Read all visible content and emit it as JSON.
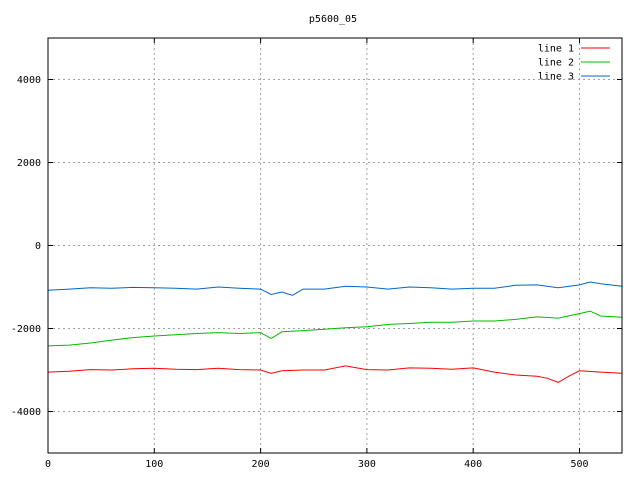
{
  "chart_data": {
    "type": "line",
    "title": "p5600_05",
    "xlim": [
      0,
      540
    ],
    "ylim": [
      -5000,
      5000
    ],
    "x_ticks": [
      0,
      100,
      200,
      300,
      400,
      500
    ],
    "y_ticks": [
      -4000,
      -2000,
      0,
      2000,
      4000
    ],
    "grid": true,
    "legend_position": "top-right",
    "series": [
      {
        "name": "line 1",
        "color": "#ff0000",
        "x": [
          0,
          20,
          40,
          60,
          80,
          100,
          120,
          140,
          160,
          180,
          200,
          210,
          220,
          240,
          260,
          280,
          300,
          320,
          340,
          360,
          380,
          400,
          420,
          440,
          460,
          470,
          480,
          490,
          500,
          520,
          540
        ],
        "y": [
          -3050,
          -3030,
          -2990,
          -3000,
          -2970,
          -2960,
          -2980,
          -2990,
          -2960,
          -2990,
          -3000,
          -3080,
          -3020,
          -3000,
          -3000,
          -2900,
          -2990,
          -3000,
          -2950,
          -2960,
          -2980,
          -2950,
          -3050,
          -3120,
          -3150,
          -3200,
          -3300,
          -3150,
          -3020,
          -3050,
          -3080
        ]
      },
      {
        "name": "line 2",
        "color": "#00bb00",
        "x": [
          0,
          20,
          40,
          60,
          80,
          100,
          120,
          140,
          160,
          180,
          200,
          210,
          220,
          240,
          260,
          280,
          300,
          320,
          340,
          360,
          380,
          400,
          420,
          440,
          460,
          480,
          500,
          510,
          520,
          540
        ],
        "y": [
          -2420,
          -2400,
          -2350,
          -2280,
          -2220,
          -2180,
          -2150,
          -2120,
          -2100,
          -2120,
          -2100,
          -2240,
          -2080,
          -2050,
          -2020,
          -1980,
          -1960,
          -1900,
          -1880,
          -1850,
          -1850,
          -1820,
          -1820,
          -1780,
          -1720,
          -1750,
          -1640,
          -1580,
          -1700,
          -1730
        ]
      },
      {
        "name": "line 3",
        "color": "#0066cc",
        "x": [
          0,
          20,
          40,
          60,
          80,
          100,
          120,
          140,
          160,
          180,
          200,
          210,
          220,
          230,
          240,
          260,
          280,
          300,
          320,
          340,
          360,
          380,
          400,
          420,
          440,
          460,
          480,
          500,
          510,
          520,
          540
        ],
        "y": [
          -1080,
          -1050,
          -1020,
          -1030,
          -1010,
          -1020,
          -1030,
          -1050,
          -1000,
          -1030,
          -1050,
          -1180,
          -1120,
          -1200,
          -1050,
          -1050,
          -980,
          -1000,
          -1050,
          -1000,
          -1020,
          -1050,
          -1030,
          -1030,
          -960,
          -950,
          -1020,
          -950,
          -880,
          -920,
          -980
        ]
      }
    ]
  }
}
